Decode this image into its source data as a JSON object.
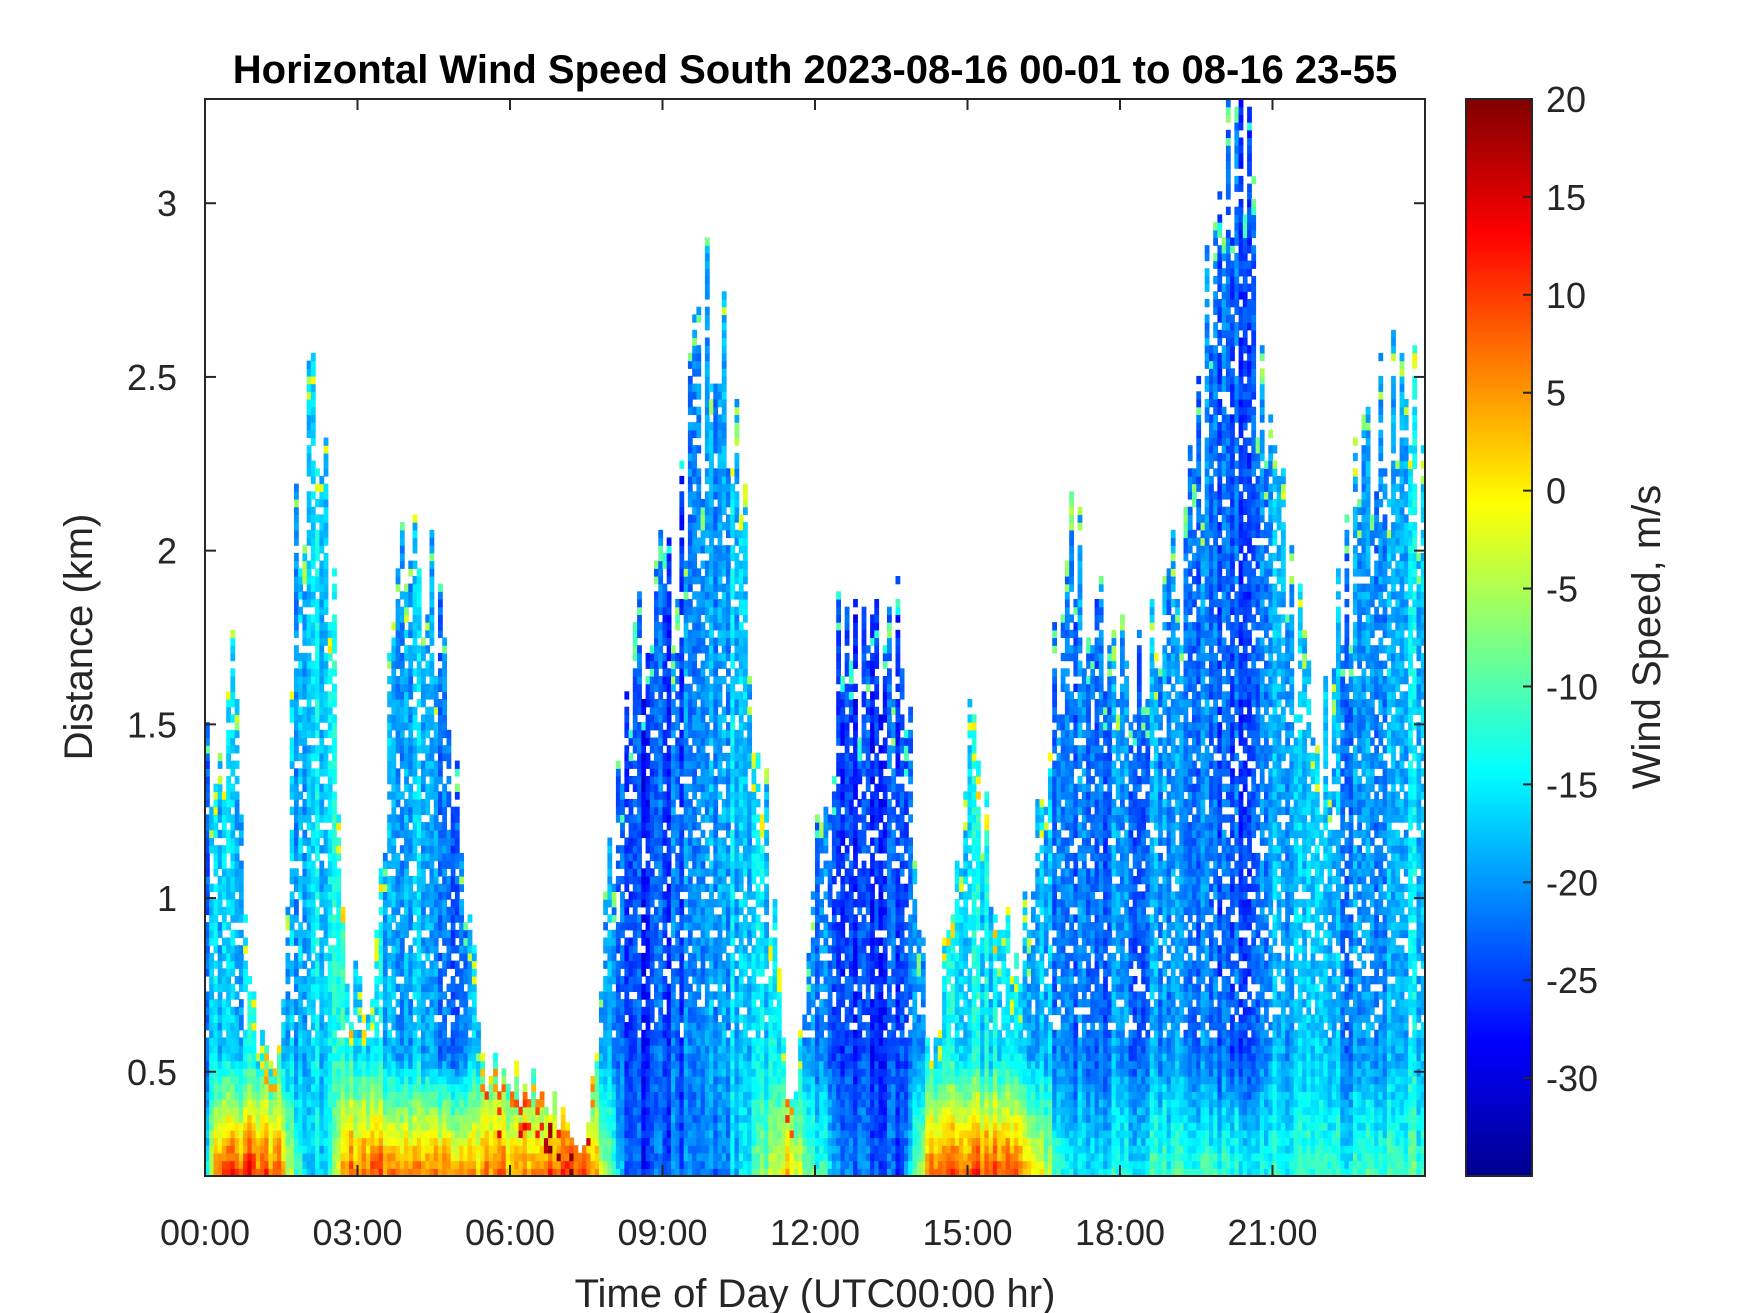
{
  "chart_data": {
    "type": "heatmap",
    "title": "Horizontal Wind Speed South 2023-08-16 00-01 to 08-16 23-55",
    "xlabel": "Time of Day (UTC00:00 hr)",
    "ylabel": "Distance (km)",
    "colorbar_label": "Wind Speed, m/s",
    "colormap": "jet",
    "xlim": [
      0,
      24
    ],
    "ylim": [
      0.2,
      3.3
    ],
    "clim": [
      -35,
      20
    ],
    "x_ticks": [
      0,
      3,
      6,
      9,
      12,
      15,
      18,
      21
    ],
    "x_tick_labels": [
      "00:00",
      "03:00",
      "06:00",
      "09:00",
      "12:00",
      "15:00",
      "18:00",
      "21:00"
    ],
    "y_ticks": [
      0.5,
      1,
      1.5,
      2,
      2.5,
      3
    ],
    "y_tick_labels": [
      "0.5",
      "1",
      "1.5",
      "2",
      "2.5",
      "3"
    ],
    "colorbar_ticks": [
      20,
      15,
      10,
      5,
      0,
      -5,
      -10,
      -15,
      -20,
      -25,
      -30
    ],
    "colorbar_tick_labels": [
      "20",
      "15",
      "10",
      "5",
      "0",
      "-5",
      "-10",
      "-15",
      "-20",
      "-25",
      "-30"
    ],
    "grid": false,
    "columns": [
      {
        "t": 0.05,
        "top": 1.45,
        "surface": -14,
        "aloft": -22
      },
      {
        "t": 0.25,
        "top": 1.4,
        "surface": 10,
        "aloft": -16
      },
      {
        "t": 0.55,
        "top": 1.62,
        "surface": 12,
        "aloft": -18
      },
      {
        "t": 1.0,
        "top": 0.55,
        "surface": 11,
        "aloft": -15
      },
      {
        "t": 1.5,
        "top": 0.55,
        "surface": 8,
        "aloft": -15
      },
      {
        "t": 1.8,
        "top": 1.95,
        "surface": -12,
        "aloft": -20
      },
      {
        "t": 2.1,
        "top": 2.32,
        "surface": -18,
        "aloft": -17
      },
      {
        "t": 2.45,
        "top": 2.05,
        "surface": -14,
        "aloft": -16
      },
      {
        "t": 2.8,
        "top": 0.8,
        "surface": 8,
        "aloft": -14
      },
      {
        "t": 3.3,
        "top": 0.7,
        "surface": 9,
        "aloft": -16
      },
      {
        "t": 3.9,
        "top": 2.15,
        "surface": 8,
        "aloft": -19
      },
      {
        "t": 4.2,
        "top": 2.1,
        "surface": 6,
        "aloft": -18
      },
      {
        "t": 4.7,
        "top": 1.7,
        "surface": 6,
        "aloft": -24
      },
      {
        "t": 5.5,
        "top": 0.5,
        "surface": 6,
        "aloft": -15
      },
      {
        "t": 6.5,
        "top": 0.45,
        "surface": 8,
        "aloft": -14
      },
      {
        "t": 7.5,
        "top": 0.28,
        "surface": 12,
        "aloft": -13
      },
      {
        "t": 8.3,
        "top": 1.6,
        "surface": -24,
        "aloft": -26
      },
      {
        "t": 8.8,
        "top": 1.8,
        "surface": -24,
        "aloft": -25
      },
      {
        "t": 9.3,
        "top": 2.05,
        "surface": -22,
        "aloft": -23
      },
      {
        "t": 10.0,
        "top": 2.7,
        "surface": -22,
        "aloft": -20
      },
      {
        "t": 10.3,
        "top": 2.6,
        "surface": -20,
        "aloft": -18
      },
      {
        "t": 11.5,
        "top": 0.35,
        "surface": 2,
        "aloft": -15
      },
      {
        "t": 12.5,
        "top": 1.72,
        "surface": -20,
        "aloft": -25
      },
      {
        "t": 13.7,
        "top": 1.75,
        "surface": -24,
        "aloft": -24
      },
      {
        "t": 14.3,
        "top": 0.45,
        "surface": 8,
        "aloft": -16
      },
      {
        "t": 15.0,
        "top": 1.4,
        "surface": 10,
        "aloft": -16
      },
      {
        "t": 16.0,
        "top": 0.8,
        "surface": 10,
        "aloft": -15
      },
      {
        "t": 17.0,
        "top": 1.9,
        "surface": -16,
        "aloft": -22
      },
      {
        "t": 18.3,
        "top": 1.8,
        "surface": -13,
        "aloft": -21
      },
      {
        "t": 19.0,
        "top": 1.75,
        "surface": -11,
        "aloft": -20
      },
      {
        "t": 20.3,
        "top": 3.28,
        "surface": -12,
        "aloft": -24
      },
      {
        "t": 21.0,
        "top": 2.1,
        "surface": -13,
        "aloft": -19
      },
      {
        "t": 22.0,
        "top": 1.4,
        "surface": -12,
        "aloft": -18
      },
      {
        "t": 23.0,
        "top": 2.45,
        "surface": -12,
        "aloft": -22
      },
      {
        "t": 23.9,
        "top": 2.35,
        "surface": -10,
        "aloft": -16
      }
    ]
  }
}
